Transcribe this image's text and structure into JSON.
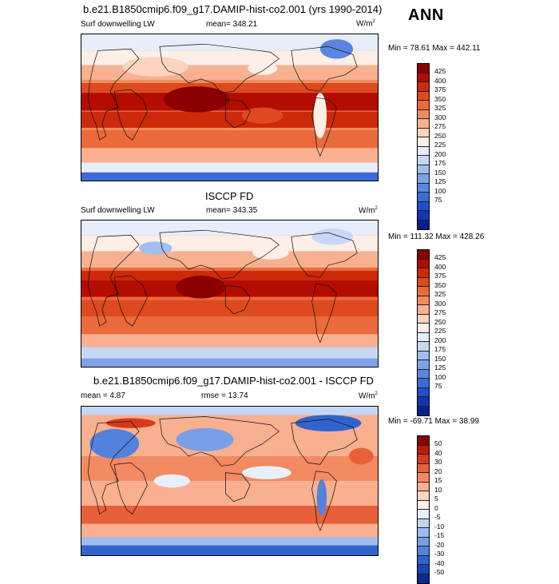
{
  "header": {
    "annual_label": "ANN"
  },
  "panels": [
    {
      "id": "model",
      "title": "b.e21.B1850cmip6.f09_g17.DAMIP-hist-co2.001 (yrs 1990-2014)",
      "left_label": "Surf downwelling LW",
      "stat_label": "mean= 348.21",
      "units": "W/m",
      "units_exp": "2",
      "minmax": "Min =  78.61 Max = 442.11",
      "colorbar": {
        "colors": [
          "#8b0000",
          "#b30c00",
          "#cc2a0a",
          "#dd4a20",
          "#ea6a3c",
          "#f28c5e",
          "#f8b190",
          "#fbd3bf",
          "#fdeee6",
          "#e6eefb",
          "#c6d8f6",
          "#a2bef0",
          "#7ea2e8",
          "#5a86df",
          "#3b6bd6",
          "#2250c8",
          "#1435b0",
          "#0a1f8c"
        ],
        "labels": [
          "425",
          "400",
          "375",
          "350",
          "325",
          "300",
          "275",
          "250",
          "225",
          "200",
          "175",
          "150",
          "125",
          "100",
          "75"
        ]
      }
    },
    {
      "id": "obs",
      "title": "ISCCP FD",
      "left_label": "Surf downwelling LW",
      "stat_label": "mean= 343.35",
      "units": "W/m",
      "units_exp": "2",
      "minmax": "Min = 111.32 Max = 428.26",
      "colorbar": {
        "colors": [
          "#8b0000",
          "#b30c00",
          "#cc2a0a",
          "#dd4a20",
          "#ea6a3c",
          "#f28c5e",
          "#f8b190",
          "#fbd3bf",
          "#fdeee6",
          "#e6eefb",
          "#c6d8f6",
          "#a2bef0",
          "#7ea2e8",
          "#5a86df",
          "#3b6bd6",
          "#2250c8",
          "#1435b0",
          "#0a1f8c"
        ],
        "labels": [
          "425",
          "400",
          "375",
          "350",
          "325",
          "300",
          "275",
          "250",
          "225",
          "200",
          "175",
          "150",
          "125",
          "100",
          "75"
        ]
      }
    },
    {
      "id": "diff",
      "title": "b.e21.B1850cmip6.f09_g17.DAMIP-hist-co2.001 - ISCCP FD",
      "left_label": "mean =   4.87",
      "stat_label": "rmse =  13.74",
      "units": "W/m",
      "units_exp": "2",
      "minmax": "Min = -69.71 Max =  38.99",
      "colorbar": {
        "colors": [
          "#8b0000",
          "#bb1a0a",
          "#d63a1e",
          "#e8603a",
          "#f28a62",
          "#f8b090",
          "#fcd4c0",
          "#fdf0e8",
          "#e8f0fc",
          "#c4d6f6",
          "#9ebcf0",
          "#789fe6",
          "#5282dc",
          "#3064cc",
          "#1a46b4",
          "#0a2a90"
        ],
        "labels": [
          "50",
          "40",
          "30",
          "20",
          "15",
          "10",
          "5",
          "0",
          "-5",
          "-10",
          "-15",
          "-20",
          "-30",
          "-40",
          "-50"
        ]
      }
    }
  ]
}
